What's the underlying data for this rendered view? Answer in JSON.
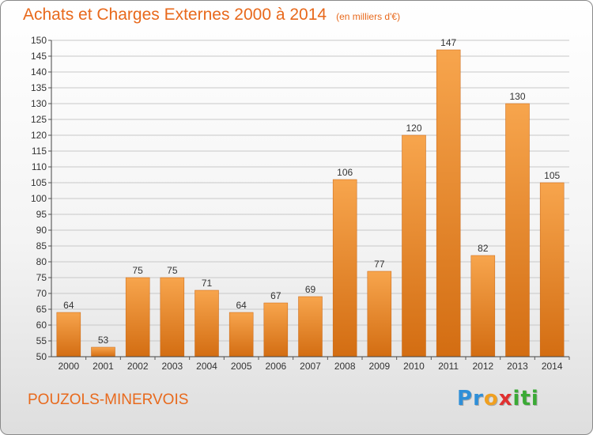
{
  "title": "Achats et Charges Externes 2000 à 2014",
  "unit_note": "(en milliers d'€)",
  "commune": "POUZOLS-MINERVOIS",
  "logo": {
    "letters": [
      "P",
      "r",
      "o",
      "x",
      "i",
      "t",
      "i"
    ],
    "colors": [
      "#2f8fd8",
      "#2f8fd8",
      "#f0a020",
      "#e03030",
      "#3aaa35",
      "#3aaa35",
      "#3aaa35"
    ]
  },
  "colors": {
    "bar_top": "#f7a54d",
    "bar_bottom": "#d36d12",
    "accent": "#e8691c",
    "grid": "#c8c8c8"
  },
  "chart_data": {
    "type": "bar",
    "title": "Achats et Charges Externes 2000 à 2014",
    "xlabel": "",
    "ylabel": "",
    "categories": [
      "2000",
      "2001",
      "2002",
      "2003",
      "2004",
      "2005",
      "2006",
      "2007",
      "2008",
      "2009",
      "2010",
      "2011",
      "2012",
      "2013",
      "2014"
    ],
    "values": [
      64,
      53,
      75,
      75,
      71,
      64,
      67,
      69,
      106,
      77,
      120,
      147,
      82,
      130,
      105
    ],
    "ylim": [
      50,
      150
    ],
    "yticks": [
      50,
      55,
      60,
      65,
      70,
      75,
      80,
      85,
      90,
      95,
      100,
      105,
      110,
      115,
      120,
      125,
      130,
      135,
      140,
      145,
      150
    ],
    "grid": true,
    "legend": "none"
  }
}
